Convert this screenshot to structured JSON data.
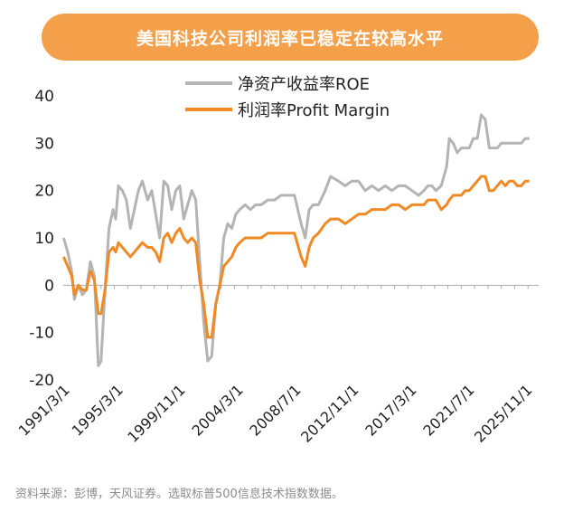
{
  "header": {
    "title": "美国科技公司利润率已稳定在较高水平"
  },
  "footer": {
    "source": "资料来源：彭博，天风证券。选取标普500信息技术指数数据。"
  },
  "chart_data": {
    "type": "line",
    "title": "美国科技公司利润率已稳定在较高水平",
    "xlabel": "",
    "ylabel": "",
    "ylim": [
      -20,
      40
    ],
    "yticks": [
      40,
      30,
      20,
      10,
      0,
      -10,
      -20
    ],
    "xlim": [
      1991.17,
      2026.8
    ],
    "xtick_labels": [
      "1991/3/1",
      "1995/3/1",
      "1999/11/1",
      "2004/3/1",
      "2008/7/1",
      "2012/11/1",
      "2017/3/1",
      "2021/7/1",
      "2025/11/1"
    ],
    "xtick_positions": [
      1991.17,
      1995.17,
      1999.83,
      2004.17,
      2008.5,
      2012.83,
      2017.17,
      2021.5,
      2025.83
    ],
    "legend": "top-center",
    "grid": false,
    "series": [
      {
        "name": "净资产收益率ROE",
        "color": "#b4b4b4",
        "x": [
          1991.2,
          1991.5,
          1991.8,
          1992.0,
          1992.3,
          1992.6,
          1992.9,
          1993.2,
          1993.5,
          1993.8,
          1994.0,
          1994.3,
          1994.6,
          1994.9,
          1995.1,
          1995.3,
          1995.6,
          1995.9,
          1996.2,
          1996.5,
          1996.8,
          1997.1,
          1997.5,
          1997.8,
          1998.1,
          1998.4,
          1998.7,
          1999.0,
          1999.3,
          1999.6,
          1999.9,
          2000.2,
          2000.5,
          2000.8,
          2001.1,
          2001.4,
          2001.7,
          2002.0,
          2002.3,
          2002.6,
          2002.9,
          2003.2,
          2003.5,
          2003.8,
          2004.1,
          2004.4,
          2004.8,
          2005.2,
          2005.6,
          2006.0,
          2006.5,
          2007.0,
          2007.5,
          2008.0,
          2008.5,
          2009.0,
          2009.3,
          2009.6,
          2009.9,
          2010.3,
          2010.8,
          2011.2,
          2011.8,
          2012.3,
          2012.8,
          2013.3,
          2013.8,
          2014.3,
          2014.8,
          2015.3,
          2015.8,
          2016.3,
          2016.8,
          2017.3,
          2017.8,
          2018.2,
          2018.5,
          2018.8,
          2019.1,
          2019.5,
          2019.9,
          2020.1,
          2020.4,
          2020.7,
          2021.0,
          2021.3,
          2021.6,
          2021.9,
          2022.2,
          2022.5,
          2022.8,
          2023.1,
          2023.4,
          2023.7,
          2024.0,
          2024.3,
          2024.6,
          2024.9,
          2025.2,
          2025.5,
          2025.8,
          2026.1
        ],
        "y": [
          10,
          7,
          3,
          -3,
          0,
          -2,
          -1,
          5,
          2,
          -17,
          -16,
          -1,
          12,
          16,
          14,
          21,
          20,
          18,
          12,
          16,
          20,
          22,
          18,
          20,
          15,
          10,
          22,
          21,
          16,
          20,
          21,
          14,
          17,
          20,
          18,
          5,
          -8,
          -16,
          -15,
          -4,
          0,
          10,
          13,
          12,
          15,
          16,
          17,
          16,
          17,
          17,
          18,
          18,
          19,
          19,
          19,
          13,
          10,
          16,
          17,
          17,
          20,
          23,
          22,
          21,
          22,
          22,
          20,
          21,
          20,
          21,
          20,
          21,
          21,
          20,
          19,
          20,
          21,
          21,
          20,
          21,
          25,
          31,
          30,
          28,
          29,
          29,
          29,
          31,
          31,
          36,
          35,
          29,
          29,
          29,
          30,
          30,
          30,
          30,
          30,
          30,
          31,
          31
        ]
      },
      {
        "name": "利润率Profit Margin",
        "color": "#f08a24",
        "x": [
          1991.2,
          1991.5,
          1991.8,
          1992.0,
          1992.3,
          1992.6,
          1992.9,
          1993.2,
          1993.5,
          1993.8,
          1994.0,
          1994.3,
          1994.6,
          1994.9,
          1995.1,
          1995.3,
          1995.6,
          1995.9,
          1996.2,
          1996.5,
          1996.8,
          1997.1,
          1997.5,
          1997.8,
          1998.1,
          1998.4,
          1998.7,
          1999.0,
          1999.3,
          1999.6,
          1999.9,
          2000.2,
          2000.5,
          2000.8,
          2001.1,
          2001.4,
          2001.7,
          2002.0,
          2002.3,
          2002.6,
          2002.9,
          2003.2,
          2003.5,
          2003.8,
          2004.1,
          2004.4,
          2004.8,
          2005.2,
          2005.6,
          2006.0,
          2006.5,
          2007.0,
          2007.5,
          2008.0,
          2008.5,
          2009.0,
          2009.3,
          2009.6,
          2009.9,
          2010.3,
          2010.8,
          2011.2,
          2011.8,
          2012.3,
          2012.8,
          2013.3,
          2013.8,
          2014.3,
          2014.8,
          2015.3,
          2015.8,
          2016.3,
          2016.8,
          2017.3,
          2017.8,
          2018.2,
          2018.5,
          2018.8,
          2019.1,
          2019.5,
          2019.9,
          2020.1,
          2020.4,
          2020.7,
          2021.0,
          2021.3,
          2021.6,
          2021.9,
          2022.2,
          2022.5,
          2022.8,
          2023.1,
          2023.4,
          2023.7,
          2024.0,
          2024.3,
          2024.6,
          2024.9,
          2025.2,
          2025.5,
          2025.8,
          2026.1
        ],
        "y": [
          6,
          4,
          2,
          -2,
          0,
          -1,
          -1,
          3,
          1,
          -6,
          -6,
          -1,
          7,
          8,
          7,
          9,
          8,
          7,
          6,
          7,
          8,
          9,
          8,
          8,
          7,
          5,
          10,
          11,
          9,
          11,
          12,
          10,
          9,
          10,
          9,
          1,
          -4,
          -11,
          -11,
          -4,
          0,
          4,
          5,
          6,
          8,
          9,
          10,
          10,
          10,
          10,
          11,
          11,
          11,
          11,
          11,
          6,
          4,
          8,
          10,
          11,
          13,
          14,
          14,
          13,
          14,
          15,
          15,
          16,
          16,
          16,
          17,
          17,
          16,
          17,
          17,
          17,
          18,
          18,
          18,
          16,
          17,
          18,
          19,
          19,
          19,
          20,
          20,
          21,
          22,
          23,
          23,
          20,
          20,
          21,
          22,
          21,
          22,
          22,
          21,
          21,
          22,
          22
        ]
      }
    ]
  }
}
